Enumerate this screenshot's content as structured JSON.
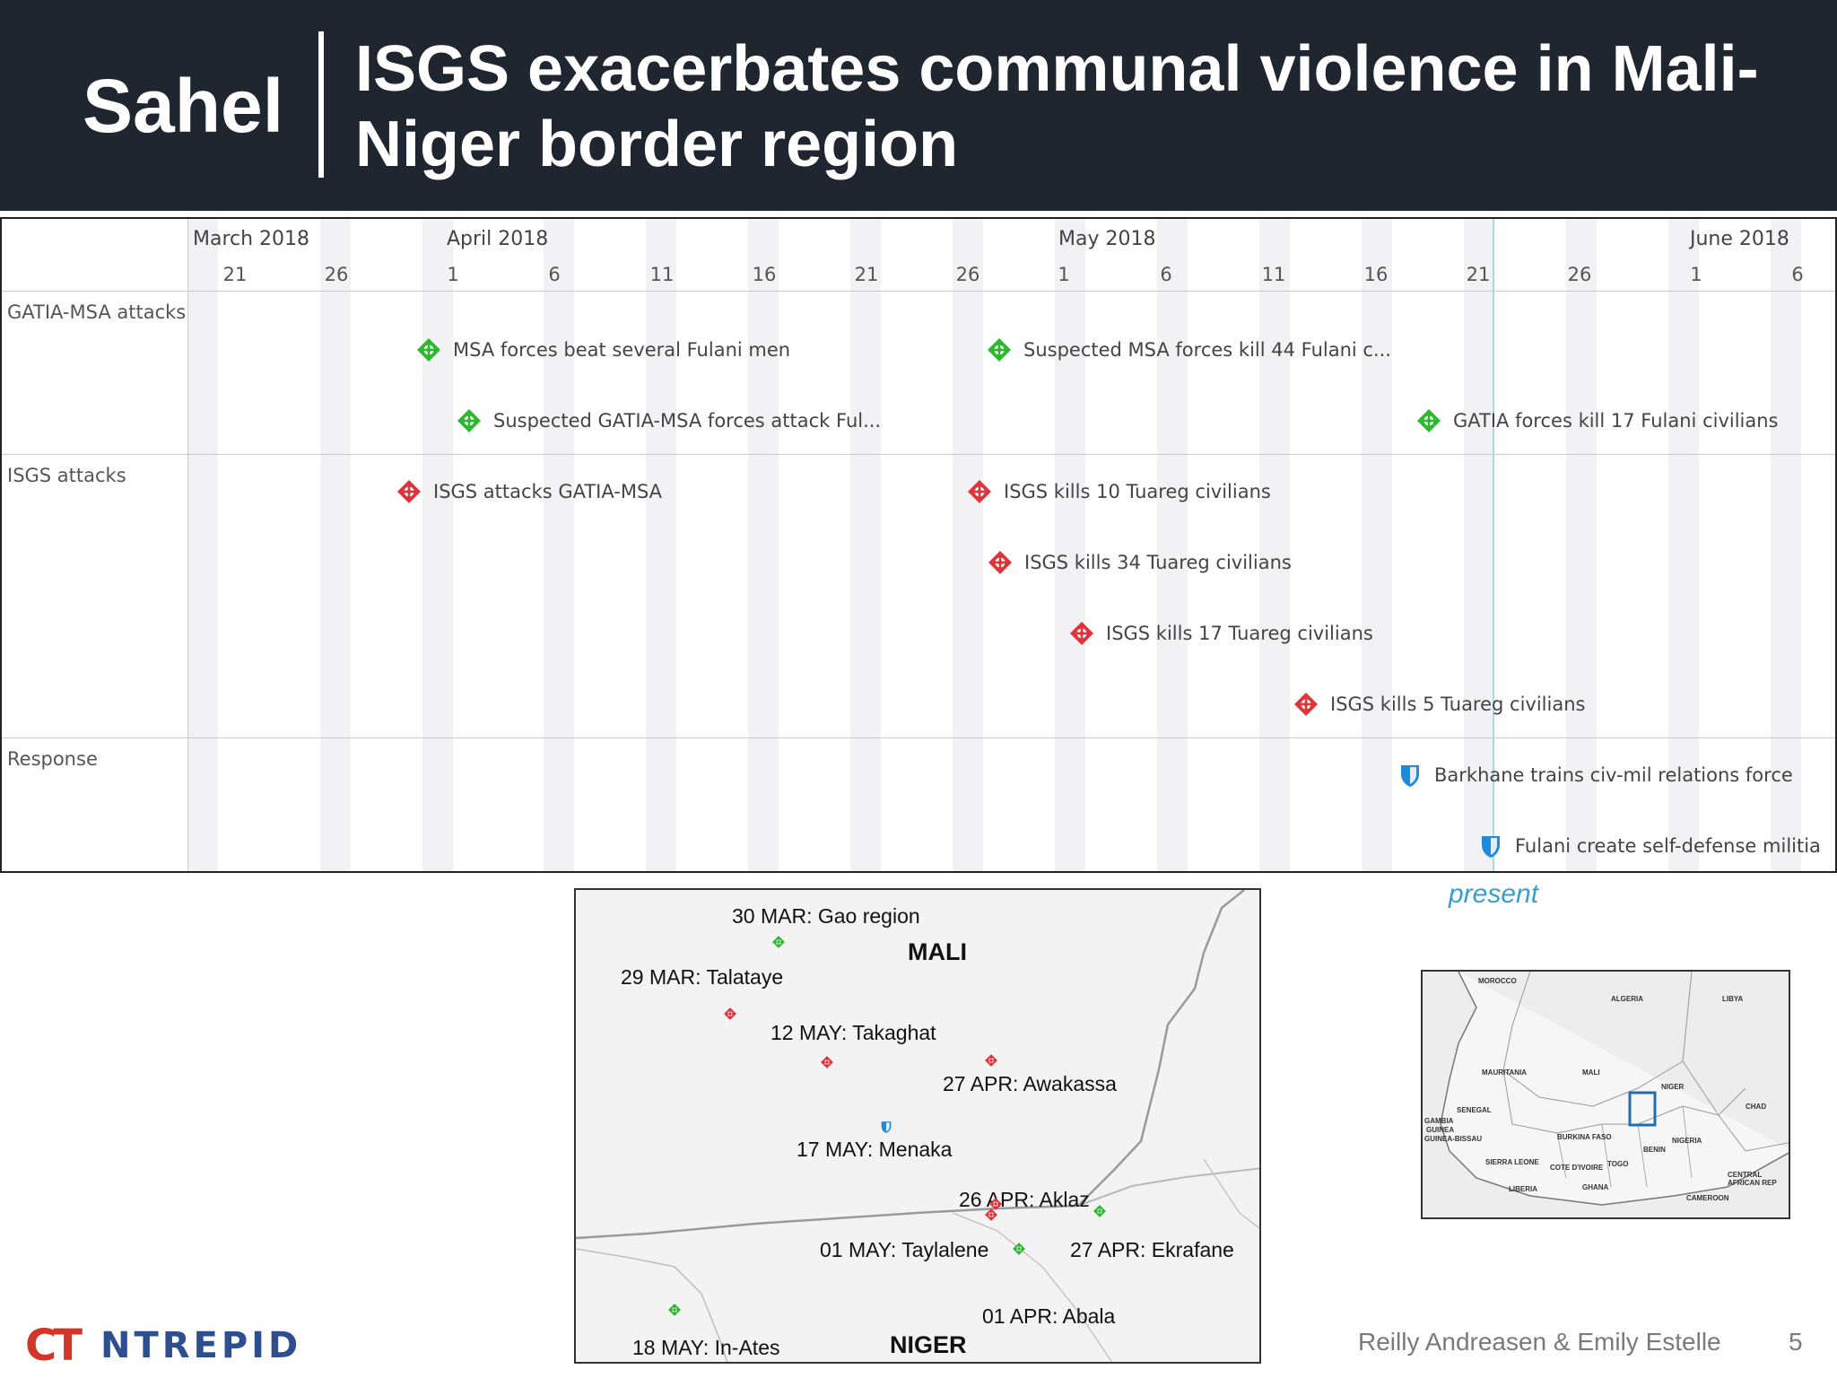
{
  "header": {
    "section": "Sahel",
    "title": "ISGS exacerbates communal violence in Mali-Niger border region"
  },
  "timeline": {
    "months": [
      "March 2018",
      "April 2018",
      "May 2018",
      "June 2018"
    ],
    "days": [
      "21",
      "26",
      "1",
      "6",
      "11",
      "16",
      "21",
      "26",
      "1",
      "6",
      "11",
      "16",
      "21",
      "26",
      "1",
      "6"
    ],
    "rows": [
      "GATIA-MSA attacks",
      "ISGS attacks",
      "Response"
    ],
    "events": [
      {
        "label": "MSA forces beat several Fulani men",
        "type": "gatia-msa"
      },
      {
        "label": "Suspected MSA forces kill 44 Fulani c...",
        "type": "gatia-msa"
      },
      {
        "label": "Suspected GATIA-MSA forces attack Ful...",
        "type": "gatia-msa"
      },
      {
        "label": "GATIA forces kill 17 Fulani civilians",
        "type": "gatia-msa"
      },
      {
        "label": "ISGS attacks GATIA-MSA",
        "type": "isgs"
      },
      {
        "label": "ISGS kills 10 Tuareg civilians",
        "type": "isgs"
      },
      {
        "label": "ISGS kills 34 Tuareg civilians",
        "type": "isgs"
      },
      {
        "label": "ISGS kills 17 Tuareg civilians",
        "type": "isgs"
      },
      {
        "label": "ISGS kills 5 Tuareg civilians",
        "type": "isgs"
      },
      {
        "label": "Barkhane trains civ-mil relations force",
        "type": "response"
      },
      {
        "label": "Fulani create self-defense militia",
        "type": "response"
      }
    ],
    "present_label": "present",
    "colors": {
      "gatia_msa": "#2db82d",
      "isgs": "#e0343a",
      "response": "#1f8ad8",
      "present": "#3a9fc6"
    }
  },
  "map": {
    "countries": [
      "MALI",
      "NIGER"
    ],
    "places": [
      "30 MAR: Gao region",
      "29 MAR: Talataye",
      "12 MAY: Takaghat",
      "27 APR: Awakassa",
      "17 MAY: Menaka",
      "26 APR: Aklaz",
      "01 MAY: Taylalene",
      "27 APR: Ekrafane",
      "01 APR: Abala",
      "18 MAY: In-Ates"
    ]
  },
  "inset_map": {
    "countries": [
      "MOROCCO",
      "ALGERIA",
      "LIBYA",
      "MAURITANIA",
      "MALI",
      "NIGER",
      "CHAD",
      "SENEGAL",
      "GAMBIA",
      "GUINEA-BISSAU",
      "GUINEA",
      "BURKINA FASO",
      "NIGERIA",
      "BENIN",
      "TOGO",
      "COTE D'IVOIRE",
      "GHANA",
      "SIERRA LEONE",
      "LIBERIA",
      "CAMEROON",
      "CENTRAL AFRICAN REP"
    ]
  },
  "footer": {
    "logo_ct": "CT",
    "logo_brand": "NTREPID",
    "authors": "Reilly Andreasen & Emily Estelle",
    "page_number": "5"
  }
}
